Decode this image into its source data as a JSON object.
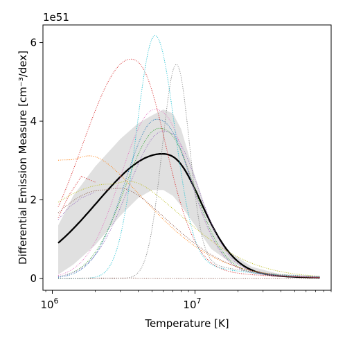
{
  "chart_data": {
    "type": "line",
    "xlabel": "Temperature [K]",
    "ylabel": "Differential Emission Measure [cm⁻³/dex]",
    "y_offset_label": "1e51",
    "x_scale": "log",
    "x_range": [
      860000,
      90000000
    ],
    "y_range": [
      -0.3,
      6.45
    ],
    "x_ticks": [
      {
        "value": 1000000,
        "base": "10",
        "exp": "6"
      },
      {
        "value": 10000000,
        "base": "10",
        "exp": "7"
      }
    ],
    "y_ticks": [
      {
        "value": 0,
        "label": "0"
      },
      {
        "value": 2,
        "label": "2"
      },
      {
        "value": 4,
        "label": "4"
      },
      {
        "value": 6,
        "label": "6"
      }
    ],
    "grid": false,
    "legend": "none",
    "x_min": 1100000,
    "x_max": 75000000,
    "band": {
      "color": "#e0e0e0",
      "points": [
        {
          "x": 1100000,
          "lo": 0.1,
          "hi": 1.35
        },
        {
          "x": 1400000,
          "lo": 0.35,
          "hi": 2.1
        },
        {
          "x": 2000000,
          "lo": 0.85,
          "hi": 2.85
        },
        {
          "x": 3000000,
          "lo": 1.6,
          "hi": 3.55
        },
        {
          "x": 4000000,
          "lo": 2.05,
          "hi": 3.95
        },
        {
          "x": 5000000,
          "lo": 2.25,
          "hi": 4.15
        },
        {
          "x": 6000000,
          "lo": 2.25,
          "hi": 4.3
        },
        {
          "x": 7000000,
          "lo": 2.1,
          "hi": 4.2
        },
        {
          "x": 8000000,
          "lo": 1.85,
          "hi": 3.8
        },
        {
          "x": 10000000,
          "lo": 1.35,
          "hi": 2.6
        },
        {
          "x": 13000000,
          "lo": 0.75,
          "hi": 1.35
        },
        {
          "x": 17000000,
          "lo": 0.45,
          "hi": 0.7
        },
        {
          "x": 25000000,
          "lo": 0.18,
          "hi": 0.3
        },
        {
          "x": 40000000,
          "lo": 0.05,
          "hi": 0.1
        },
        {
          "x": 75000000,
          "lo": 0.0,
          "hi": 0.03
        }
      ]
    },
    "series": [
      {
        "color": "#000000",
        "style": "solid",
        "width": 2.3,
        "kind": "gauss",
        "peak": 3.17,
        "log_center": 6.77,
        "sigma_left": 0.46,
        "sigma_right": 0.25,
        "tail_amp": 0.12,
        "tail_decay": 2.5
      },
      {
        "color": "#1f77b4",
        "style": "dotted",
        "width": 1,
        "kind": "gauss",
        "peak": 4.05,
        "log_center": 6.73,
        "sigma_left": 0.22,
        "sigma_right": 0.22,
        "tail_amp": 0.14,
        "tail_decay": 2.5
      },
      {
        "color": "#ff7f0e",
        "style": "dotted",
        "width": 1,
        "kind": "gauss",
        "peak": 3.02,
        "log_center": 6.12,
        "sigma_left": 0.9,
        "sigma_right": 0.52,
        "tail_amp": 0.15,
        "tail_decay": 1.7
      },
      {
        "color": "#2ca02c",
        "style": "dotted",
        "width": 1,
        "kind": "gauss",
        "peak": 3.82,
        "log_center": 6.75,
        "sigma_left": 0.24,
        "sigma_right": 0.22,
        "tail_amp": 0.14,
        "tail_decay": 2.5
      },
      {
        "color": "#d62728",
        "style": "dotted",
        "width": 1,
        "kind": "gauss",
        "peak": 5.58,
        "log_center": 6.55,
        "sigma_left": 0.34,
        "sigma_right": 0.22,
        "tail_amp": 0.14,
        "tail_decay": 2.5
      },
      {
        "color": "#9467bd",
        "style": "dotted",
        "width": 1,
        "kind": "gauss",
        "peak": 3.75,
        "log_center": 6.78,
        "sigma_left": 0.25,
        "sigma_right": 0.22,
        "tail_amp": 0.14,
        "tail_decay": 2.5
      },
      {
        "color": "#8c564b",
        "style": "dotted",
        "width": 1,
        "kind": "gauss",
        "peak": 2.25,
        "log_center": 6.35,
        "sigma_left": 0.4,
        "sigma_right": 0.45,
        "tail_amp": 0.15,
        "tail_decay": 2.0
      },
      {
        "color": "#e377c2",
        "style": "dotted",
        "width": 1,
        "kind": "gauss",
        "peak": 4.3,
        "log_center": 6.72,
        "sigma_left": 0.24,
        "sigma_right": 0.22,
        "tail_amp": 0.14,
        "tail_decay": 2.5
      },
      {
        "color": "#7f7f7f",
        "style": "dotted",
        "width": 1,
        "kind": "gauss",
        "peak": 5.45,
        "log_center": 6.87,
        "sigma_left": 0.1,
        "sigma_right": 0.09,
        "tail_amp": 0.12,
        "tail_decay": 2.5
      },
      {
        "color": "#bcbd22",
        "style": "dotted",
        "width": 1,
        "kind": "gauss",
        "peak": 2.4,
        "log_center": 6.4,
        "sigma_left": 0.55,
        "sigma_right": 0.5,
        "tail_amp": 0.15,
        "tail_decay": 1.8
      },
      {
        "color": "#17becf",
        "style": "dotted",
        "width": 1,
        "kind": "gauss",
        "peak": 6.18,
        "log_center": 6.72,
        "sigma_left": 0.13,
        "sigma_right": 0.13,
        "tail_amp": 0.13,
        "tail_decay": 2.5
      },
      {
        "color": "#8c564b",
        "style": "dotted",
        "width": 1,
        "kind": "gauss",
        "peak": 0.01,
        "log_center": 6.4,
        "sigma_left": 0.5,
        "sigma_right": 0.5,
        "tail_amp": 0.0,
        "tail_decay": 2.5
      },
      {
        "color": "#d62728",
        "style": "dotted",
        "width": 1,
        "kind": "points",
        "points": [
          {
            "x": 1100000,
            "y": 1.55
          },
          {
            "x": 1300000,
            "y": 2.1
          },
          {
            "x": 1600000,
            "y": 2.6
          },
          {
            "x": 2000000,
            "y": 2.45
          }
        ]
      },
      {
        "color": "#9467bd",
        "style": "dotted",
        "width": 1,
        "kind": "points",
        "points": [
          {
            "x": 1100000,
            "y": 1.5
          },
          {
            "x": 1300000,
            "y": 1.8
          },
          {
            "x": 1600000,
            "y": 2.05
          },
          {
            "x": 2000000,
            "y": 2.2
          }
        ]
      }
    ]
  }
}
